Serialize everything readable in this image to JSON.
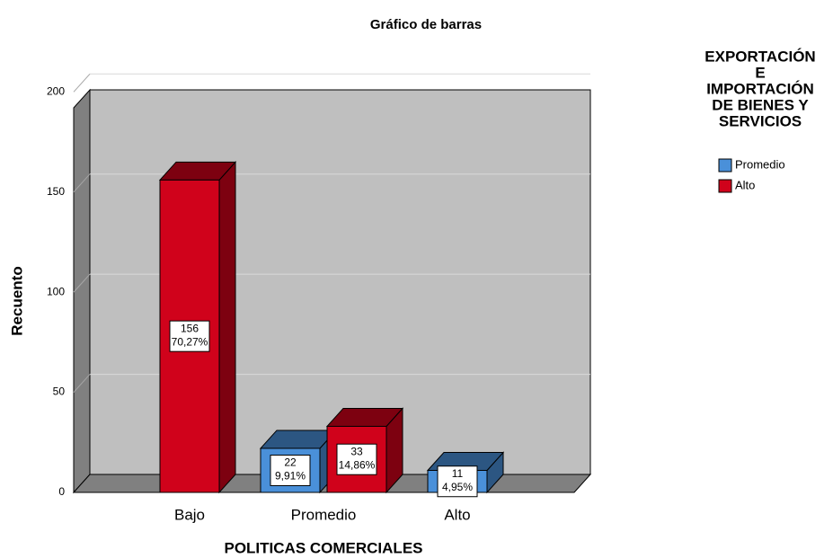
{
  "chart_data": {
    "type": "bar3d",
    "title": "Gráfico de barras",
    "x_label": "POLITICAS COMERCIALES",
    "y_label": "Recuento",
    "categories": [
      "Bajo",
      "Promedio",
      "Alto"
    ],
    "legend_title": [
      "EXPORTACIÓN",
      "E",
      "IMPORTACIÓN",
      "DE BIENES Y",
      "SERVICIOS"
    ],
    "series": [
      {
        "name": "Promedio",
        "color": "#4a90d9",
        "values": [
          null,
          22,
          11
        ],
        "percent_labels": [
          null,
          "9,91%",
          "4,95%"
        ]
      },
      {
        "name": "Alto",
        "color": "#d0021b",
        "values": [
          156,
          33,
          null
        ],
        "percent_labels": [
          "70,27%",
          "14,86%",
          null
        ]
      }
    ],
    "ylim": [
      0,
      210
    ],
    "yticks": [
      0,
      50,
      100,
      150,
      200
    ],
    "grid": true
  }
}
